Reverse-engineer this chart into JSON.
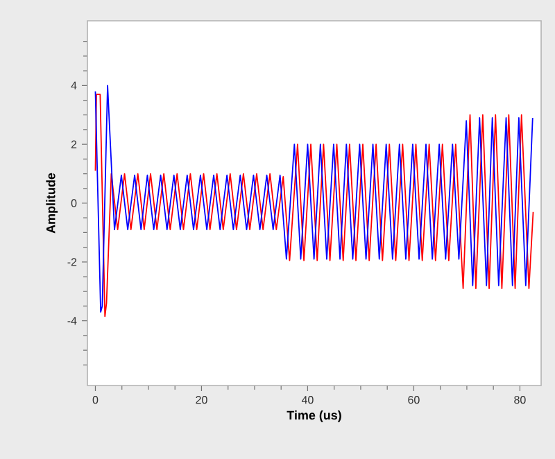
{
  "chart_data": {
    "type": "line",
    "xlabel": "Time (us)",
    "ylabel": "Amplitude",
    "xlim": [
      -1.5,
      84
    ],
    "ylim": [
      -6.2,
      6.2
    ],
    "xticks": [
      0,
      {
        "value": 5,
        "label": null
      },
      {
        "value": 10,
        "label": null
      },
      {
        "value": 15,
        "label": null
      },
      20,
      {
        "value": 25,
        "label": null
      },
      {
        "value": 30,
        "label": null
      },
      {
        "value": 35,
        "label": null
      },
      40,
      {
        "value": 45,
        "label": null
      },
      {
        "value": 50,
        "label": null
      },
      {
        "value": 55,
        "label": null
      },
      60,
      {
        "value": 65,
        "label": null
      },
      {
        "value": 70,
        "label": null
      },
      {
        "value": 75,
        "label": null
      },
      80
    ],
    "yticks": [
      {
        "value": -5.5,
        "label": null
      },
      {
        "value": -5,
        "label": null
      },
      {
        "value": -4.5,
        "label": null
      },
      -4,
      {
        "value": -3.5,
        "label": null
      },
      {
        "value": -3,
        "label": null
      },
      {
        "value": -2.5,
        "label": null
      },
      -2,
      {
        "value": -1.5,
        "label": null
      },
      {
        "value": -1,
        "label": null
      },
      {
        "value": -0.5,
        "label": null
      },
      0,
      {
        "value": 0.5,
        "label": null
      },
      {
        "value": 1,
        "label": null
      },
      {
        "value": 1.5,
        "label": null
      },
      2,
      {
        "value": 2.5,
        "label": null
      },
      {
        "value": 3,
        "label": null
      },
      {
        "value": 3.5,
        "label": null
      },
      4,
      {
        "value": 4.5,
        "label": null
      },
      {
        "value": 5,
        "label": null
      },
      {
        "value": 5.5,
        "label": null
      }
    ],
    "marker": "none",
    "line_style": "solid",
    "series": [
      {
        "color": "#ff0000",
        "x": [
          0,
          0.2,
          0.9,
          1.8,
          2.1,
          3.0,
          4.2,
          5.5,
          6.7,
          8.0,
          9.2,
          10.4,
          11.6,
          12.9,
          14.1,
          15.4,
          16.6,
          17.9,
          19.1,
          20.4,
          21.6,
          22.9,
          24.1,
          25.4,
          26.6,
          27.9,
          29.1,
          30.4,
          31.6,
          32.9,
          34.1,
          35.4,
          36.6,
          38.1,
          39.3,
          40.6,
          41.8,
          43.0,
          44.2,
          45.5,
          46.7,
          47.9,
          49.1,
          50.4,
          51.6,
          52.9,
          54.1,
          55.4,
          56.6,
          57.9,
          59.1,
          60.4,
          61.6,
          62.9,
          64.1,
          65.4,
          66.6,
          67.9,
          69.3,
          70.6,
          71.7,
          73.0,
          74.2,
          75.4,
          76.6,
          77.9,
          79.1,
          80.3,
          81.7,
          82.5
        ],
        "values": [
          1.1,
          3.7,
          3.7,
          -3.85,
          -3.4,
          1.0,
          -0.9,
          1.0,
          -0.9,
          1.0,
          -0.9,
          1.0,
          -0.9,
          1.0,
          -0.9,
          1.0,
          -0.9,
          1.0,
          -0.9,
          1.0,
          -0.9,
          1.0,
          -0.9,
          1.0,
          -0.9,
          1.0,
          -0.9,
          1.0,
          -0.9,
          1.0,
          -0.9,
          0.9,
          -1.95,
          2.0,
          -1.95,
          2.0,
          -1.95,
          2.0,
          -1.95,
          2.0,
          -1.95,
          2.0,
          -1.95,
          2.0,
          -1.95,
          2.0,
          -1.95,
          2.0,
          -1.95,
          2.0,
          -1.95,
          2.0,
          -1.95,
          2.0,
          -1.95,
          2.0,
          -1.95,
          2.0,
          -2.9,
          3.0,
          -2.9,
          3.0,
          -2.9,
          3.0,
          -2.9,
          3.0,
          -2.9,
          3.0,
          -2.9,
          -0.3
        ]
      },
      {
        "color": "#0000ff",
        "x": [
          0,
          1.0,
          1.3,
          2.3,
          3.6,
          4.9,
          6.1,
          7.4,
          8.6,
          9.8,
          11.0,
          12.3,
          13.5,
          14.8,
          16.0,
          17.3,
          18.5,
          19.8,
          21.0,
          22.3,
          23.5,
          24.8,
          26.0,
          27.3,
          28.5,
          29.8,
          31.0,
          32.3,
          33.5,
          34.8,
          36.0,
          37.5,
          38.7,
          40.0,
          41.2,
          42.4,
          43.6,
          44.9,
          46.1,
          47.3,
          48.5,
          49.8,
          51.0,
          52.3,
          53.5,
          54.8,
          56.0,
          57.3,
          58.5,
          59.8,
          61.0,
          62.3,
          63.5,
          64.8,
          66.0,
          67.3,
          68.5,
          69.9,
          71.1,
          72.4,
          73.7,
          74.8,
          76.0,
          77.4,
          78.6,
          79.8,
          81.1,
          82.4
        ],
        "values": [
          3.8,
          -3.7,
          -3.5,
          4.0,
          -0.9,
          0.95,
          -0.9,
          0.95,
          -0.9,
          0.95,
          -0.9,
          0.95,
          -0.9,
          0.95,
          -0.9,
          0.95,
          -0.9,
          0.95,
          -0.9,
          0.95,
          -0.9,
          0.95,
          -0.9,
          0.95,
          -0.9,
          0.95,
          -0.9,
          0.95,
          -0.9,
          0.95,
          -1.9,
          2.0,
          -1.9,
          2.0,
          -1.9,
          2.0,
          -1.9,
          2.0,
          -1.9,
          2.0,
          -1.9,
          2.0,
          -1.9,
          2.0,
          -1.9,
          2.0,
          -1.9,
          2.0,
          -1.9,
          2.0,
          -1.9,
          2.0,
          -1.9,
          2.0,
          -1.9,
          2.0,
          -1.9,
          2.8,
          -2.8,
          2.9,
          -2.8,
          2.9,
          -2.8,
          2.9,
          -2.8,
          2.9,
          -2.8,
          2.9
        ]
      }
    ]
  }
}
